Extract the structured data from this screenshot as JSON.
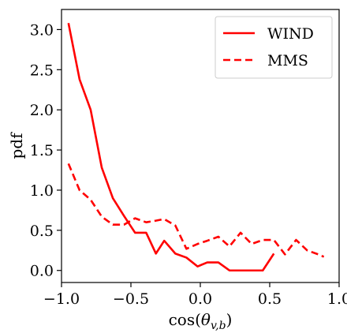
{
  "chart_data": {
    "type": "line",
    "title": "",
    "xlabel": "cos(θ_{v,b})",
    "xlabel_parts": {
      "prefix": "cos(",
      "theta": "θ",
      "subscript": "v,b",
      "suffix": ")"
    },
    "ylabel": "pdf",
    "xlim": [
      -1.0,
      1.0
    ],
    "ylim": [
      -0.15,
      3.25
    ],
    "x_ticks": [
      -1.0,
      -0.5,
      0.0,
      0.5,
      1.0
    ],
    "x_tick_labels": [
      "−1.0",
      "−0.5",
      "0.0",
      "0.5",
      "1.0"
    ],
    "y_ticks": [
      0.0,
      0.5,
      1.0,
      1.5,
      2.0,
      2.5,
      3.0
    ],
    "y_tick_labels": [
      "0.0",
      "0.5",
      "1.0",
      "1.5",
      "2.0",
      "2.5",
      "3.0"
    ],
    "grid": false,
    "legend_position": "top-right",
    "series": [
      {
        "name": "WIND",
        "color": "#ff0000",
        "style": "solid",
        "x": [
          -0.95,
          -0.87,
          -0.79,
          -0.71,
          -0.63,
          -0.55,
          -0.47,
          -0.39,
          -0.32,
          -0.26,
          -0.18,
          -0.1,
          -0.02,
          0.05,
          0.13,
          0.21,
          0.29,
          0.37,
          0.45,
          0.53
        ],
        "y": [
          3.08,
          2.38,
          2.0,
          1.28,
          0.9,
          0.68,
          0.47,
          0.47,
          0.21,
          0.37,
          0.21,
          0.16,
          0.05,
          0.1,
          0.1,
          0.0,
          0.0,
          0.0,
          0.0,
          0.21
        ]
      },
      {
        "name": "MMS",
        "color": "#ff0000",
        "style": "dashed",
        "x": [
          -0.95,
          -0.87,
          -0.79,
          -0.71,
          -0.63,
          -0.55,
          -0.47,
          -0.39,
          -0.32,
          -0.26,
          -0.18,
          -0.1,
          -0.02,
          0.05,
          0.13,
          0.21,
          0.29,
          0.37,
          0.45,
          0.53,
          0.61,
          0.69,
          0.77,
          0.85,
          0.89
        ],
        "y": [
          1.33,
          1.0,
          0.88,
          0.67,
          0.57,
          0.57,
          0.65,
          0.6,
          0.62,
          0.64,
          0.56,
          0.27,
          0.33,
          0.37,
          0.42,
          0.3,
          0.47,
          0.33,
          0.38,
          0.38,
          0.2,
          0.38,
          0.25,
          0.2,
          0.17
        ]
      }
    ]
  }
}
